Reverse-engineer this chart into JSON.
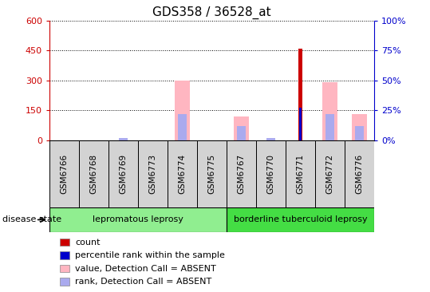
{
  "title": "GDS358 / 36528_at",
  "samples": [
    "GSM6766",
    "GSM6768",
    "GSM6769",
    "GSM6773",
    "GSM6774",
    "GSM6775",
    "GSM6767",
    "GSM6770",
    "GSM6771",
    "GSM6772",
    "GSM6776"
  ],
  "group1_count": 6,
  "group2_count": 5,
  "group1_label": "lepromatous leprosy",
  "group2_label": "borderline tuberculoid leprosy",
  "group1_color": "#90EE90",
  "group2_color": "#44DD44",
  "ylim_left": [
    0,
    600
  ],
  "ylim_right": [
    0,
    100
  ],
  "yticks_left": [
    0,
    150,
    300,
    450,
    600
  ],
  "yticks_right": [
    0,
    25,
    50,
    75,
    100
  ],
  "left_axis_color": "#CC0000",
  "right_axis_color": "#0000CC",
  "count_bars": [
    0,
    0,
    0,
    0,
    0,
    0,
    0,
    0,
    458,
    0,
    0
  ],
  "rank_bars_pct": [
    0,
    0,
    0,
    0,
    0,
    0,
    0,
    0,
    27,
    0,
    0
  ],
  "value_absent_bars": [
    0,
    0,
    0,
    0,
    300,
    0,
    120,
    0,
    0,
    290,
    130
  ],
  "rank_absent_bars_pct": [
    0,
    0,
    2,
    0,
    22,
    0,
    12,
    2,
    0,
    22,
    12
  ],
  "count_color": "#CC0000",
  "rank_color": "#0000CC",
  "value_absent_color": "#FFB6C1",
  "rank_absent_color": "#AAAAEE",
  "background_color": "#FFFFFF",
  "gray_box_color": "#D3D3D3",
  "legend_items": [
    {
      "label": "count",
      "color": "#CC0000"
    },
    {
      "label": "percentile rank within the sample",
      "color": "#0000CC"
    },
    {
      "label": "value, Detection Call = ABSENT",
      "color": "#FFB6C1"
    },
    {
      "label": "rank, Detection Call = ABSENT",
      "color": "#AAAAEE"
    }
  ]
}
